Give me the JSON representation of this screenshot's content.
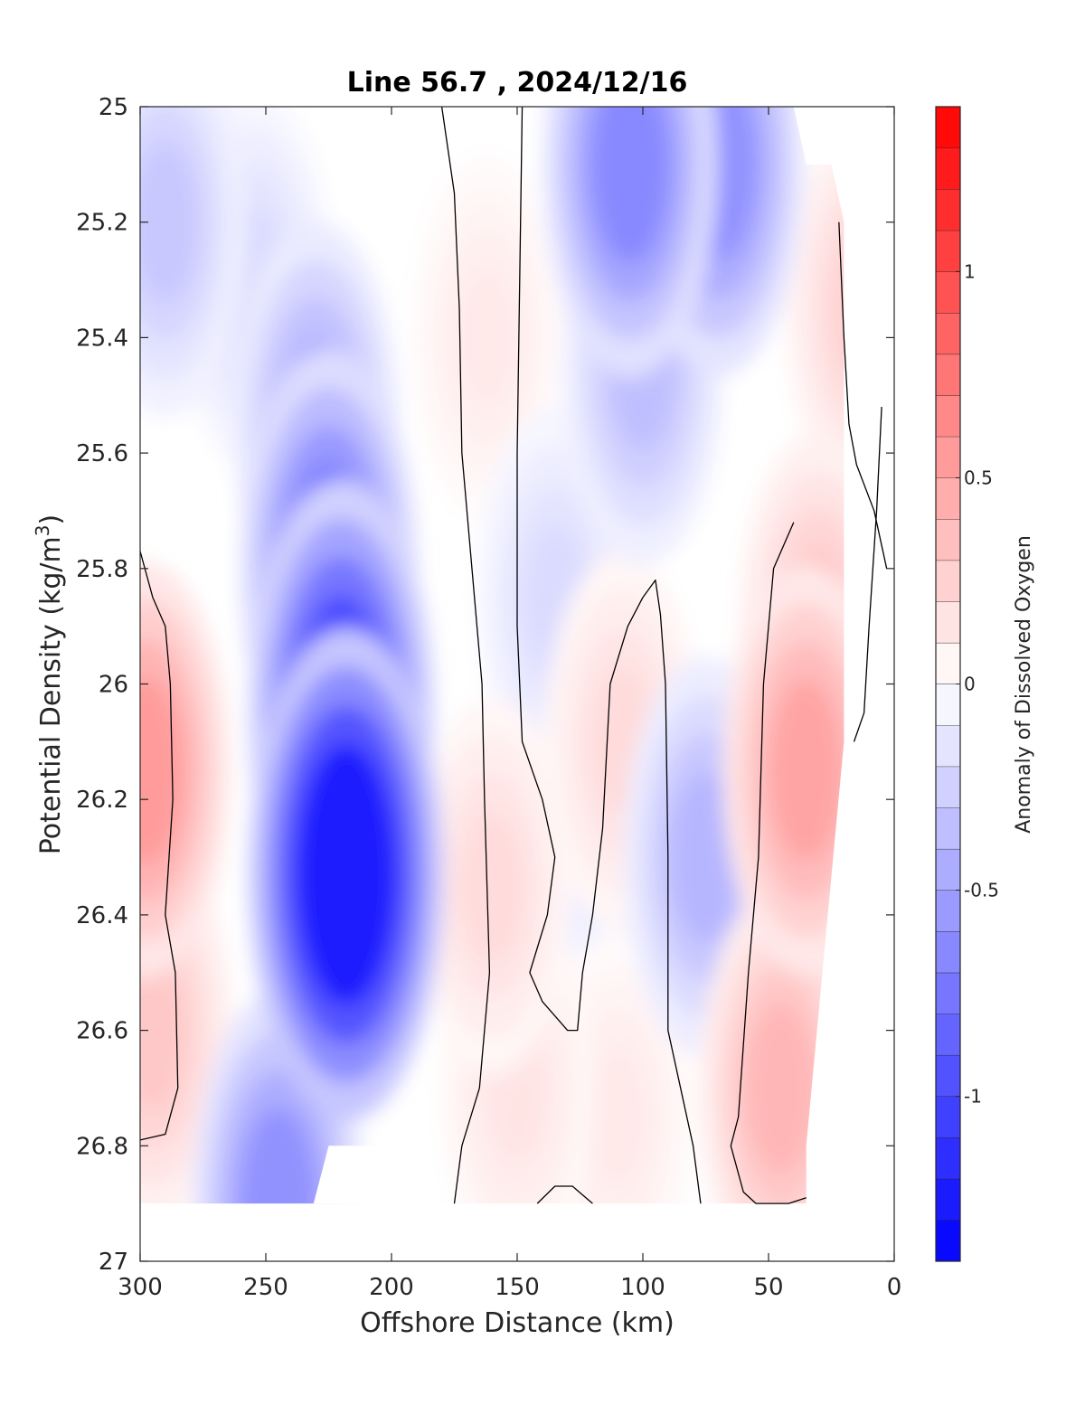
{
  "chart_data": {
    "type": "contour",
    "title": "Line 56.7 , 2024/12/16",
    "xlabel": "Offshore Distance (km)",
    "ylabel_main": "Potential Density (kg/m",
    "ylabel_sup": "3",
    "ylabel_end": ")",
    "colorbar_label": "Anomaly of Dissolved Oxygen",
    "xlim": [
      300,
      0
    ],
    "ylim": [
      25,
      27
    ],
    "x_reversed": true,
    "y_reversed": true,
    "x_ticks": [
      300,
      250,
      200,
      150,
      100,
      50,
      0
    ],
    "x_tick_labels": [
      "300",
      "250",
      "200",
      "150",
      "100",
      "50",
      "0"
    ],
    "y_ticks": [
      25,
      25.2,
      25.4,
      25.6,
      25.8,
      26,
      26.2,
      26.4,
      26.6,
      26.8,
      27
    ],
    "y_tick_labels": [
      "25",
      "25.2",
      "25.4",
      "25.6",
      "25.8",
      "26",
      "26.2",
      "26.4",
      "26.6",
      "26.8",
      "27"
    ],
    "colorbar_range": [
      -1.4,
      1.4
    ],
    "colorbar_levels": 28,
    "colorbar_ticks": [
      1,
      0.5,
      0,
      -0.5,
      -1
    ],
    "colorbar_tick_labels": [
      "1",
      "0.5",
      "0",
      "-0.5",
      "-1"
    ],
    "colors": {
      "negative_max": "#0000ff",
      "positive_max": "#ff0000",
      "zero": "#ffffff",
      "contour_line": "#000000"
    },
    "field_features": [
      {
        "x": 218,
        "y": 26.33,
        "value": -1.25
      },
      {
        "x": 220,
        "y": 26.05,
        "value": -1.0
      },
      {
        "x": 225,
        "y": 25.8,
        "value": -0.75
      },
      {
        "x": 230,
        "y": 25.55,
        "value": -0.45
      },
      {
        "x": 255,
        "y": 25.3,
        "value": -0.2
      },
      {
        "x": 290,
        "y": 25.2,
        "value": -0.3
      },
      {
        "x": 245,
        "y": 26.9,
        "value": -0.6
      },
      {
        "x": 105,
        "y": 25.1,
        "value": -0.65
      },
      {
        "x": 70,
        "y": 25.1,
        "value": -0.6
      },
      {
        "x": 100,
        "y": 25.45,
        "value": -0.35
      },
      {
        "x": 75,
        "y": 26.3,
        "value": -0.4
      },
      {
        "x": 135,
        "y": 25.85,
        "value": -0.2
      },
      {
        "x": 125,
        "y": 26.3,
        "value": -0.1
      },
      {
        "x": 298,
        "y": 26.15,
        "value": 0.55
      },
      {
        "x": 295,
        "y": 26.6,
        "value": 0.3
      },
      {
        "x": 35,
        "y": 26.15,
        "value": 0.5
      },
      {
        "x": 45,
        "y": 26.7,
        "value": 0.4
      },
      {
        "x": 30,
        "y": 25.9,
        "value": 0.3
      },
      {
        "x": 12,
        "y": 25.35,
        "value": 0.25
      },
      {
        "x": 162,
        "y": 25.4,
        "value": 0.12
      },
      {
        "x": 160,
        "y": 26.35,
        "value": 0.2
      },
      {
        "x": 150,
        "y": 26.7,
        "value": 0.15
      },
      {
        "x": 108,
        "y": 26.1,
        "value": 0.2
      },
      {
        "x": 110,
        "y": 26.75,
        "value": 0.12
      },
      {
        "x": 5,
        "y": 25.85,
        "value": -0.1
      }
    ],
    "zero_contours": [
      [
        [
          300,
          25.77
        ],
        [
          295,
          25.85
        ],
        [
          290,
          25.9
        ],
        [
          288,
          26.0
        ],
        [
          287,
          26.2
        ],
        [
          290,
          26.4
        ],
        [
          286,
          26.5
        ],
        [
          285,
          26.7
        ],
        [
          290,
          26.78
        ],
        [
          300,
          26.79
        ]
      ],
      [
        [
          180,
          25.0
        ],
        [
          175,
          25.15
        ],
        [
          173,
          25.35
        ],
        [
          172,
          25.6
        ],
        [
          168,
          25.8
        ],
        [
          164,
          26.0
        ],
        [
          163,
          26.2
        ],
        [
          161,
          26.5
        ],
        [
          165,
          26.7
        ],
        [
          172,
          26.8
        ],
        [
          175,
          26.9
        ]
      ],
      [
        [
          148,
          25.0
        ],
        [
          149,
          25.3
        ],
        [
          150,
          25.6
        ],
        [
          150,
          25.9
        ],
        [
          148,
          26.1
        ],
        [
          140,
          26.2
        ],
        [
          135,
          26.3
        ],
        [
          138,
          26.4
        ],
        [
          145,
          26.5
        ],
        [
          140,
          26.55
        ],
        [
          130,
          26.6
        ],
        [
          126,
          26.6
        ],
        [
          124,
          26.5
        ],
        [
          120,
          26.4
        ],
        [
          116,
          26.25
        ],
        [
          113,
          26.0
        ],
        [
          106,
          25.9
        ],
        [
          100,
          25.85
        ],
        [
          95,
          25.82
        ],
        [
          93,
          25.88
        ],
        [
          91,
          26.0
        ],
        [
          90,
          26.3
        ],
        [
          90,
          26.6
        ],
        [
          85,
          26.7
        ],
        [
          80,
          26.8
        ],
        [
          77,
          26.9
        ]
      ],
      [
        [
          142,
          26.9
        ],
        [
          135,
          26.87
        ],
        [
          128,
          26.87
        ],
        [
          120,
          26.9
        ]
      ],
      [
        [
          22,
          25.2
        ],
        [
          20,
          25.4
        ],
        [
          18,
          25.55
        ],
        [
          15,
          25.62
        ],
        [
          8,
          25.7
        ],
        [
          3,
          25.8
        ]
      ],
      [
        [
          40,
          25.72
        ],
        [
          48,
          25.8
        ],
        [
          52,
          26.0
        ],
        [
          54,
          26.3
        ],
        [
          58,
          26.5
        ],
        [
          62,
          26.75
        ],
        [
          65,
          26.8
        ],
        [
          60,
          26.88
        ],
        [
          55,
          26.9
        ],
        [
          42,
          26.9
        ],
        [
          35,
          26.89
        ]
      ],
      [
        [
          5,
          25.52
        ],
        [
          7,
          25.7
        ],
        [
          10,
          25.9
        ],
        [
          12,
          26.05
        ],
        [
          16,
          26.1
        ]
      ]
    ],
    "nodata_regions": [
      [
        [
          300,
          26.9
        ],
        [
          0,
          26.9
        ],
        [
          0,
          27.0
        ],
        [
          300,
          27.0
        ]
      ],
      [
        [
          225,
          26.8
        ],
        [
          190,
          26.8
        ],
        [
          195,
          26.9
        ],
        [
          231,
          26.9
        ]
      ],
      [
        [
          40,
          25.0
        ],
        [
          0,
          25.0
        ],
        [
          0,
          25.2
        ],
        [
          20,
          25.2
        ],
        [
          25,
          25.1
        ],
        [
          35,
          25.1
        ]
      ],
      [
        [
          20,
          25.2
        ],
        [
          0,
          25.2
        ],
        [
          0,
          26.9
        ],
        [
          35,
          26.9
        ],
        [
          35,
          26.8
        ],
        [
          20,
          26.1
        ]
      ]
    ]
  }
}
